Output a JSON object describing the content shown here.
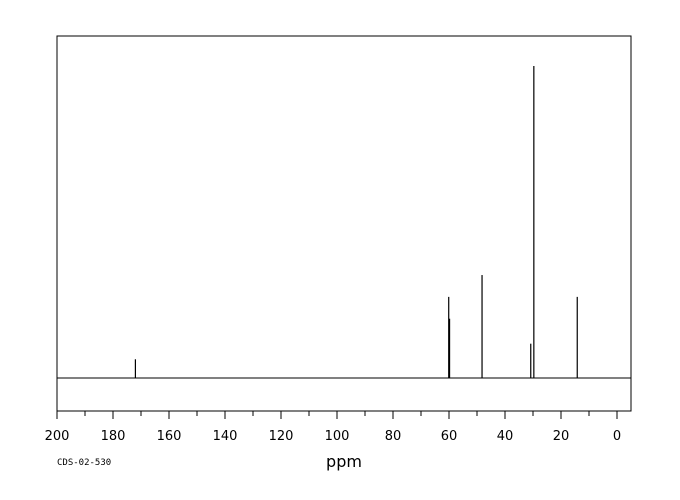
{
  "chart_data": {
    "type": "line",
    "title": "",
    "xlabel": "ppm",
    "ylabel": "",
    "code_label": "CDS-02-530",
    "x_reversed": true,
    "xlim": [
      200,
      -5
    ],
    "ylim": [
      -0.1,
      1.0
    ],
    "x_ticks": [
      200,
      180,
      160,
      140,
      120,
      100,
      80,
      60,
      40,
      20,
      0
    ],
    "x_tick_labels": [
      "200",
      "180",
      "160",
      "140",
      "120",
      "100",
      "80",
      "60",
      "40",
      "20",
      "0"
    ],
    "grid": false,
    "baseline": 0,
    "peaks": [
      {
        "ppm": 172.0,
        "height": 0.06
      },
      {
        "ppm": 60.1,
        "height": 0.26
      },
      {
        "ppm": 59.8,
        "height": 0.19
      },
      {
        "ppm": 48.2,
        "height": 0.33
      },
      {
        "ppm": 30.8,
        "height": 0.11
      },
      {
        "ppm": 29.7,
        "height": 1.0
      },
      {
        "ppm": 14.2,
        "height": 0.26
      }
    ]
  }
}
